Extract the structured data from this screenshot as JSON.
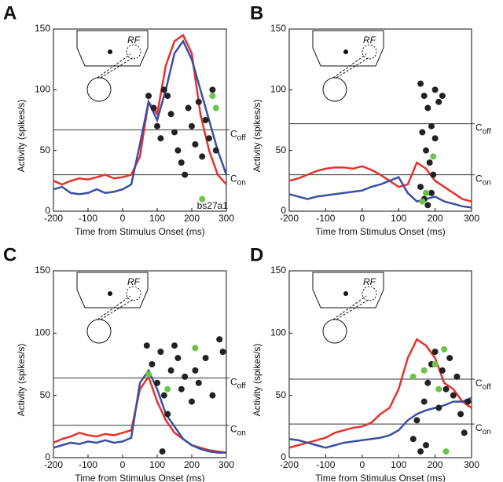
{
  "chart_data": [
    {
      "type": "line",
      "panel": "A",
      "ylabel": "Activity (spikes/s)",
      "xlabel": "Time from Stimulus Onset (ms)",
      "rf_label": "RF",
      "annotation": "bs27a1",
      "xlim": [
        -200,
        300
      ],
      "xticks": [
        -200,
        -100,
        0,
        100,
        200,
        300
      ],
      "ylim": [
        0,
        150
      ],
      "yticks": [
        0,
        50,
        100,
        150
      ],
      "x": [
        -200,
        -175,
        -150,
        -125,
        -100,
        -75,
        -50,
        -25,
        0,
        25,
        50,
        75,
        100,
        125,
        150,
        175,
        200,
        225,
        250,
        275,
        300
      ],
      "series": [
        {
          "color": "#e8302a",
          "values": [
            25,
            22,
            25,
            27,
            26,
            28,
            30,
            27,
            28,
            30,
            45,
            90,
            80,
            120,
            140,
            145,
            130,
            80,
            50,
            30,
            22
          ]
        },
        {
          "color": "#3a4fa3",
          "values": [
            18,
            20,
            15,
            14,
            15,
            18,
            15,
            16,
            18,
            22,
            55,
            90,
            75,
            100,
            130,
            140,
            125,
            100,
            75,
            50,
            30
          ]
        }
      ],
      "points": [
        {
          "color": "#222222",
          "x": [
            75,
            90,
            100,
            110,
            120,
            130,
            140,
            150,
            160,
            170,
            180,
            190,
            200,
            210,
            220,
            230,
            240,
            250,
            260,
            270
          ],
          "y": [
            95,
            85,
            70,
            60,
            100,
            95,
            80,
            65,
            50,
            40,
            30,
            85,
            70,
            55,
            90,
            45,
            75,
            60,
            100,
            50
          ]
        },
        {
          "color": "#6cc24a",
          "x": [
            230,
            260,
            270
          ],
          "y": [
            10,
            95,
            85
          ]
        }
      ],
      "hlines": [
        {
          "value": 67,
          "label": "C",
          "sub": "off"
        },
        {
          "value": 30,
          "label": "C",
          "sub": "on"
        }
      ]
    },
    {
      "type": "line",
      "panel": "B",
      "ylabel": "Activity (spikes/s)",
      "xlabel": "Time from Stimulus Onset (ms)",
      "rf_label": "RF",
      "xlim": [
        -200,
        300
      ],
      "xticks": [
        -200,
        -100,
        0,
        100,
        200,
        300
      ],
      "ylim": [
        0,
        150
      ],
      "yticks": [
        0,
        50,
        100,
        150
      ],
      "x": [
        -200,
        -175,
        -150,
        -125,
        -100,
        -75,
        -50,
        -25,
        0,
        25,
        50,
        75,
        100,
        125,
        150,
        175,
        200,
        225,
        250,
        275,
        300
      ],
      "series": [
        {
          "color": "#e8302a",
          "values": [
            25,
            27,
            30,
            33,
            35,
            36,
            36,
            35,
            37,
            34,
            30,
            25,
            20,
            22,
            40,
            35,
            25,
            20,
            15,
            10,
            8
          ]
        },
        {
          "color": "#3a4fa3",
          "values": [
            14,
            12,
            10,
            12,
            13,
            14,
            15,
            16,
            17,
            20,
            22,
            25,
            28,
            15,
            8,
            10,
            12,
            8,
            6,
            4,
            3
          ]
        }
      ],
      "points": [
        {
          "color": "#222222",
          "x": [
            160,
            170,
            180,
            190,
            200,
            175,
            185,
            195,
            160,
            170,
            180,
            200,
            210,
            165,
            190,
            220
          ],
          "y": [
            105,
            95,
            85,
            70,
            60,
            50,
            40,
            30,
            20,
            10,
            5,
            100,
            90,
            65,
            15,
            95
          ]
        },
        {
          "color": "#6cc24a",
          "x": [
            165,
            175,
            195
          ],
          "y": [
            8,
            15,
            45
          ]
        }
      ],
      "hlines": [
        {
          "value": 72,
          "label": "C",
          "sub": "off"
        },
        {
          "value": 30,
          "label": "C",
          "sub": "on"
        }
      ]
    },
    {
      "type": "line",
      "panel": "C",
      "ylabel": "Activity (spikes/s)",
      "xlabel": "Time from Stimulus Onset (ms)",
      "rf_label": "RF",
      "xlim": [
        -200,
        300
      ],
      "xticks": [
        -200,
        -100,
        0,
        100,
        200,
        300
      ],
      "ylim": [
        0,
        150
      ],
      "yticks": [
        0,
        50,
        100,
        150
      ],
      "x": [
        -200,
        -175,
        -150,
        -125,
        -100,
        -75,
        -50,
        -25,
        0,
        25,
        50,
        75,
        100,
        125,
        150,
        175,
        200,
        225,
        250,
        275,
        300
      ],
      "series": [
        {
          "color": "#e8302a",
          "values": [
            12,
            15,
            17,
            20,
            18,
            17,
            19,
            18,
            20,
            22,
            55,
            65,
            45,
            30,
            20,
            15,
            10,
            8,
            6,
            5,
            4
          ]
        },
        {
          "color": "#3a4fa3",
          "values": [
            8,
            10,
            12,
            11,
            13,
            12,
            14,
            12,
            13,
            16,
            60,
            70,
            55,
            35,
            25,
            15,
            10,
            7,
            5,
            4,
            4
          ]
        }
      ],
      "points": [
        {
          "color": "#222222",
          "x": [
            70,
            85,
            100,
            110,
            120,
            130,
            140,
            150,
            160,
            170,
            180,
            200,
            210,
            220,
            240,
            260,
            280,
            290,
            115
          ],
          "y": [
            90,
            75,
            60,
            85,
            50,
            35,
            70,
            90,
            80,
            55,
            65,
            45,
            70,
            60,
            80,
            50,
            95,
            85,
            5
          ]
        },
        {
          "color": "#6cc24a",
          "x": [
            75,
            130,
            210
          ],
          "y": [
            67,
            55,
            88
          ]
        }
      ],
      "hlines": [
        {
          "value": 64,
          "label": "C",
          "sub": "off"
        },
        {
          "value": 26,
          "label": "C",
          "sub": "on"
        }
      ]
    },
    {
      "type": "line",
      "panel": "D",
      "ylabel": "Activity (spikes/s)",
      "xlabel": "Time from Stimulus Onset (ms)",
      "rf_label": "RF",
      "xlim": [
        -200,
        300
      ],
      "xticks": [
        -200,
        -100,
        0,
        100,
        200,
        300
      ],
      "ylim": [
        0,
        150
      ],
      "yticks": [
        0,
        50,
        100,
        150
      ],
      "x": [
        -200,
        -175,
        -150,
        -125,
        -100,
        -75,
        -50,
        -25,
        0,
        25,
        50,
        75,
        100,
        125,
        150,
        175,
        200,
        225,
        250,
        275,
        300
      ],
      "series": [
        {
          "color": "#e8302a",
          "values": [
            8,
            10,
            12,
            14,
            16,
            20,
            22,
            24,
            25,
            28,
            35,
            40,
            55,
            80,
            95,
            90,
            80,
            60,
            55,
            45,
            40
          ]
        },
        {
          "color": "#3a4fa3",
          "values": [
            15,
            14,
            12,
            10,
            8,
            10,
            12,
            13,
            14,
            15,
            16,
            18,
            22,
            30,
            35,
            38,
            40,
            42,
            45,
            45,
            48
          ]
        }
      ],
      "points": [
        {
          "color": "#222222",
          "x": [
            140,
            150,
            160,
            170,
            180,
            190,
            200,
            210,
            220,
            230,
            240,
            250,
            260,
            270,
            280,
            290,
            175
          ],
          "y": [
            15,
            30,
            5,
            45,
            60,
            75,
            85,
            40,
            70,
            55,
            80,
            50,
            65,
            35,
            20,
            45,
            10
          ]
        },
        {
          "color": "#6cc24a",
          "x": [
            140,
            170,
            200,
            210,
            225,
            230
          ],
          "y": [
            65,
            70,
            75,
            55,
            87,
            5
          ]
        }
      ],
      "hlines": [
        {
          "value": 63,
          "label": "C",
          "sub": "off"
        },
        {
          "value": 27,
          "label": "C",
          "sub": "on"
        }
      ]
    }
  ]
}
